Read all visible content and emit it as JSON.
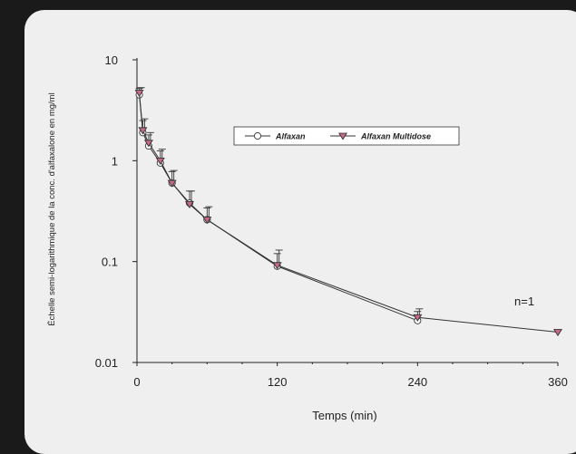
{
  "chart_data": {
    "type": "line",
    "xlabel": "Temps (min)",
    "ylabel": "Échelle semi-logarithmique de la conc. d'alfaxalone en mg/ml",
    "x_ticks": [
      "0",
      "120",
      "240",
      "360"
    ],
    "y_ticks": [
      "10",
      "1",
      "0.1",
      "0.01"
    ],
    "xlim": [
      0,
      360
    ],
    "ylim": [
      0.01,
      10
    ],
    "y_scale": "log",
    "legend_position": "top-center",
    "annotation": "n=1",
    "series": [
      {
        "name": "Alfaxan",
        "marker": "circle",
        "color": "#ffffff",
        "x": [
          2,
          5,
          10,
          20,
          30,
          45,
          60,
          120,
          240
        ],
        "y": [
          4.5,
          1.9,
          1.4,
          0.95,
          0.6,
          0.38,
          0.26,
          0.09,
          0.026
        ],
        "error_upper": [
          5.2,
          2.5,
          1.8,
          1.25,
          0.78,
          0.5,
          0.34,
          0.12,
          0.032
        ]
      },
      {
        "name": "Alfaxan Multidose",
        "marker": "triangle-down",
        "color": "#c76b85",
        "x": [
          2,
          5,
          10,
          20,
          30,
          45,
          60,
          120,
          240,
          360
        ],
        "y": [
          4.7,
          2.0,
          1.5,
          1.0,
          0.6,
          0.37,
          0.26,
          0.092,
          0.028,
          0.02
        ],
        "error_upper": [
          5.3,
          2.6,
          1.9,
          1.3,
          0.8,
          0.5,
          0.35,
          0.13,
          0.034,
          null
        ]
      }
    ]
  }
}
